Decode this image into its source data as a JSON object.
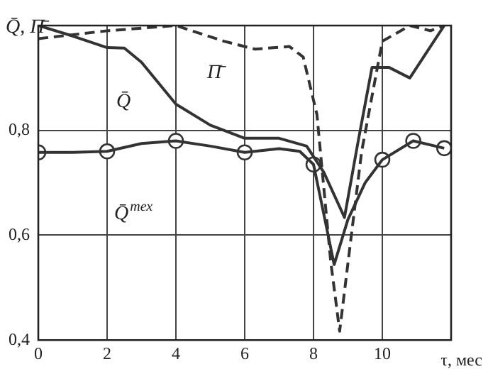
{
  "chart_data": {
    "type": "line",
    "ylabel": "Q̄, Π̄",
    "xlabel": "τ, мес",
    "xlim": [
      0,
      12
    ],
    "xticks": [
      0,
      2,
      4,
      6,
      8,
      10
    ],
    "ylim": [
      0.4,
      1.0
    ],
    "yticks": [
      {
        "value": 0.4,
        "label": "0,4"
      },
      {
        "value": 0.6,
        "label": "0,6"
      },
      {
        "value": 0.8,
        "label": "0,8"
      },
      {
        "value": 1.0,
        "label": null
      }
    ],
    "grid": true,
    "legend": false,
    "series": [
      {
        "name": "Q̄",
        "color": "#333333",
        "line_style": "solid",
        "marker": "none",
        "x": [
          0,
          1,
          2,
          2.5,
          3,
          3.5,
          4,
          5,
          6,
          7,
          7.8,
          8.3,
          8.9,
          9.3,
          9.7,
          10.2,
          10.8,
          11.3,
          11.8
        ],
        "values": [
          1.0,
          0.98,
          0.958,
          0.957,
          0.93,
          0.89,
          0.85,
          0.81,
          0.785,
          0.785,
          0.77,
          0.72,
          0.634,
          0.78,
          0.92,
          0.92,
          0.9,
          0.95,
          1.0
        ]
      },
      {
        "name": "Π̄",
        "color": "#333333",
        "line_style": "dashed",
        "marker": "none",
        "x": [
          0,
          2,
          3,
          4,
          5.4,
          6.3,
          7.3,
          7.7,
          8.1,
          8.5,
          8.76,
          9.1,
          9.4,
          9.7,
          10,
          10.8,
          11.4,
          11.8
        ],
        "values": [
          0.975,
          0.99,
          0.995,
          1.0,
          0.97,
          0.955,
          0.96,
          0.94,
          0.83,
          0.55,
          0.417,
          0.6,
          0.76,
          0.865,
          0.97,
          1.0,
          0.99,
          1.0
        ]
      },
      {
        "name": "Q̄$^{тех}$",
        "color": "#333333",
        "line_style": "solid",
        "marker": "none",
        "x": [
          0,
          1,
          2,
          3,
          4,
          5,
          6,
          7,
          7.6,
          8,
          8.3,
          8.6,
          9,
          9.5,
          10,
          10.9,
          11.8
        ],
        "values": [
          0.758,
          0.758,
          0.76,
          0.775,
          0.78,
          0.77,
          0.758,
          0.765,
          0.76,
          0.735,
          0.64,
          0.544,
          0.63,
          0.7,
          0.744,
          0.78,
          0.766
        ]
      },
      {
        "type": "scatter",
        "color": "#333333",
        "marker": "circle",
        "x": [
          0,
          2,
          4,
          6,
          8,
          10,
          10.9,
          11.8
        ],
        "values": [
          0.758,
          0.76,
          0.78,
          0.758,
          0.735,
          0.744,
          0.78,
          0.766
        ]
      }
    ]
  }
}
